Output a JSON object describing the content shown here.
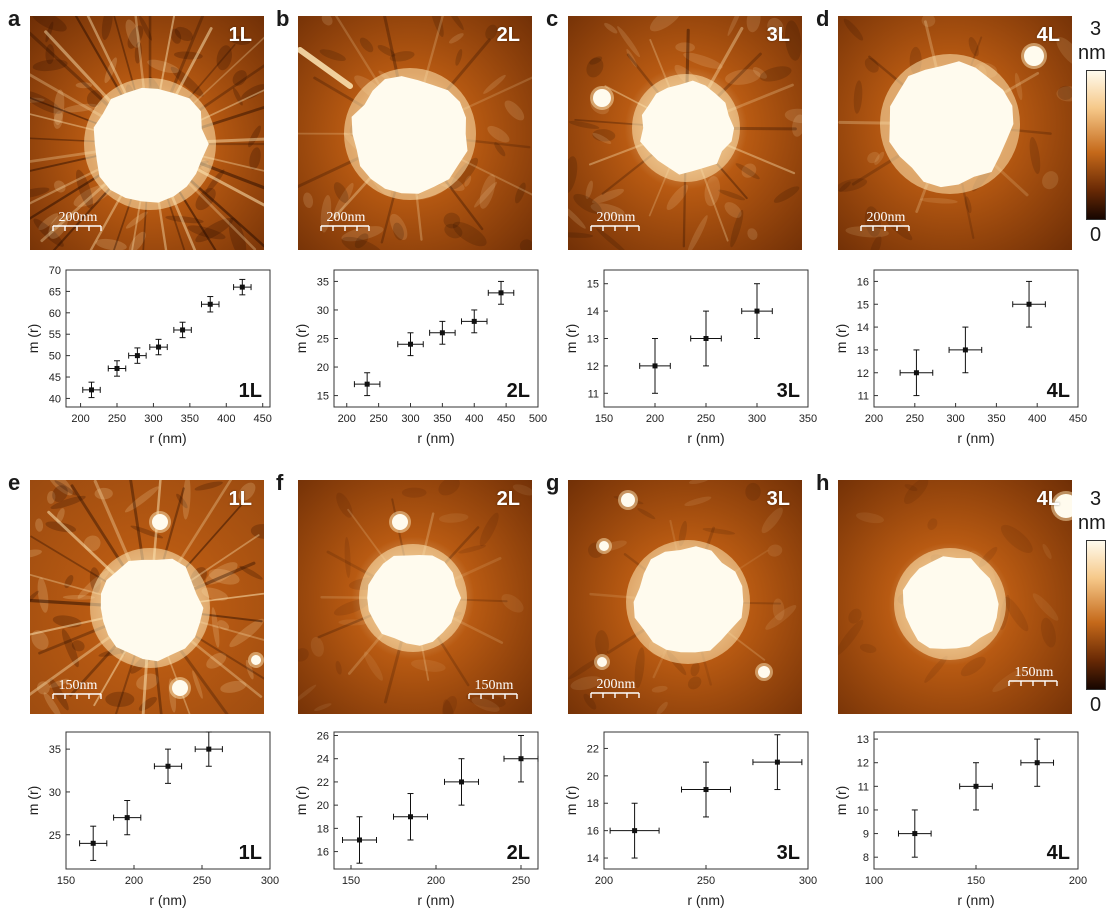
{
  "colorbar_top": {
    "max_label": "3",
    "unit": "nm",
    "min_label": "0"
  },
  "colorbar_bottom": {
    "max_label": "3",
    "unit": "nm",
    "min_label": "0"
  },
  "colors": {
    "afm_dark": "#2a0d00",
    "afm_mid": "#b85a12",
    "afm_light": "#ffe7b5",
    "afm_white": "#fffbee",
    "marker": "#111111"
  },
  "panels": [
    {
      "letter": "a",
      "layer": "1L",
      "scale": "200nm",
      "plot": {
        "xticks": [
          "200",
          "250",
          "300",
          "350",
          "400",
          "450"
        ],
        "yticks": [
          "40",
          "45",
          "50",
          "55",
          "60",
          "65",
          "70"
        ],
        "xlabel": "r (nm)",
        "ylabel": "m (r)"
      }
    },
    {
      "letter": "b",
      "layer": "2L",
      "scale": "200nm",
      "plot": {
        "xticks": [
          "200",
          "250",
          "300",
          "350",
          "400",
          "450",
          "500"
        ],
        "yticks": [
          "15",
          "20",
          "25",
          "30",
          "35"
        ],
        "xlabel": "r (nm)",
        "ylabel": "m (r)"
      }
    },
    {
      "letter": "c",
      "layer": "3L",
      "scale": "200nm",
      "plot": {
        "xticks": [
          "150",
          "200",
          "250",
          "300",
          "350"
        ],
        "yticks": [
          "11",
          "12",
          "13",
          "14",
          "15"
        ],
        "xlabel": "r (nm)",
        "ylabel": "m (r)"
      }
    },
    {
      "letter": "d",
      "layer": "4L",
      "scale": "200nm",
      "plot": {
        "xticks": [
          "200",
          "250",
          "300",
          "350",
          "400",
          "450"
        ],
        "yticks": [
          "11",
          "12",
          "13",
          "14",
          "15",
          "16"
        ],
        "xlabel": "r (nm)",
        "ylabel": "m (r)"
      }
    },
    {
      "letter": "e",
      "layer": "1L",
      "scale": "150nm",
      "plot": {
        "xticks": [
          "150",
          "200",
          "250",
          "300"
        ],
        "yticks": [
          "25",
          "30",
          "35"
        ],
        "xlabel": "r (nm)",
        "ylabel": "m (r)"
      }
    },
    {
      "letter": "f",
      "layer": "2L",
      "scale": "150nm",
      "plot": {
        "xticks": [
          "150",
          "200",
          "250"
        ],
        "yticks": [
          "16",
          "18",
          "20",
          "22",
          "24",
          "26"
        ],
        "xlabel": "r (nm)",
        "ylabel": "m (r)"
      }
    },
    {
      "letter": "g",
      "layer": "3L",
      "scale": "200nm",
      "plot": {
        "xticks": [
          "200",
          "250",
          "300"
        ],
        "yticks": [
          "14",
          "16",
          "18",
          "20",
          "22"
        ],
        "xlabel": "r (nm)",
        "ylabel": "m (r)"
      }
    },
    {
      "letter": "h",
      "layer": "4L",
      "scale": "150nm",
      "plot": {
        "xticks": [
          "100",
          "150",
          "200"
        ],
        "yticks": [
          "8",
          "9",
          "10",
          "11",
          "12",
          "13"
        ],
        "xlabel": "r (nm)",
        "ylabel": "m (r)"
      }
    }
  ],
  "chart_data": [
    {
      "type": "scatter",
      "panel": "a",
      "xlim": [
        180,
        460
      ],
      "ylim": [
        38,
        70
      ],
      "x": [
        215,
        250,
        278,
        307,
        340,
        378,
        422
      ],
      "y": [
        42,
        47,
        50,
        52,
        56,
        62,
        66
      ],
      "xerr": [
        12,
        12,
        12,
        12,
        12,
        12,
        12
      ],
      "yerr": [
        1.8,
        1.8,
        1.8,
        1.8,
        1.8,
        1.8,
        1.8
      ],
      "xlabel": "r (nm)",
      "ylabel": "m (r)"
    },
    {
      "type": "scatter",
      "panel": "b",
      "xlim": [
        180,
        500
      ],
      "ylim": [
        13,
        37
      ],
      "x": [
        232,
        300,
        350,
        400,
        442
      ],
      "y": [
        17,
        24,
        26,
        28,
        33
      ],
      "xerr": [
        20,
        20,
        20,
        20,
        20
      ],
      "yerr": [
        2,
        2,
        2,
        2,
        2
      ],
      "xlabel": "r (nm)",
      "ylabel": "m (r)"
    },
    {
      "type": "scatter",
      "panel": "c",
      "xlim": [
        150,
        350
      ],
      "ylim": [
        10.5,
        15.5
      ],
      "x": [
        200,
        250,
        300
      ],
      "y": [
        12,
        13,
        14
      ],
      "xerr": [
        15,
        15,
        15
      ],
      "yerr": [
        1,
        1,
        1
      ],
      "xlabel": "r (nm)",
      "ylabel": "m (r)"
    },
    {
      "type": "scatter",
      "panel": "d",
      "xlim": [
        200,
        450
      ],
      "ylim": [
        10.5,
        16.5
      ],
      "x": [
        252,
        312,
        390
      ],
      "y": [
        12,
        13,
        15
      ],
      "xerr": [
        20,
        20,
        20
      ],
      "yerr": [
        1,
        1,
        1
      ],
      "xlabel": "r (nm)",
      "ylabel": "m (r)"
    },
    {
      "type": "scatter",
      "panel": "e",
      "xlim": [
        150,
        300
      ],
      "ylim": [
        21,
        37
      ],
      "x": [
        170,
        195,
        225,
        255
      ],
      "y": [
        24,
        27,
        33,
        35
      ],
      "xerr": [
        10,
        10,
        10,
        10
      ],
      "yerr": [
        2,
        2,
        2,
        2
      ],
      "xlabel": "r (nm)",
      "ylabel": "m (r)"
    },
    {
      "type": "scatter",
      "panel": "f",
      "xlim": [
        140,
        260
      ],
      "ylim": [
        14.5,
        26.3
      ],
      "x": [
        155,
        185,
        215,
        250
      ],
      "y": [
        17,
        19,
        22,
        24
      ],
      "xerr": [
        10,
        10,
        10,
        10
      ],
      "yerr": [
        2,
        2,
        2,
        2
      ],
      "xlabel": "r (nm)",
      "ylabel": "m (r)"
    },
    {
      "type": "scatter",
      "panel": "g",
      "xlim": [
        200,
        300
      ],
      "ylim": [
        13.2,
        23.2
      ],
      "x": [
        215,
        250,
        285
      ],
      "y": [
        16,
        19,
        21
      ],
      "xerr": [
        12,
        12,
        12
      ],
      "yerr": [
        2,
        2,
        2
      ],
      "xlabel": "r (nm)",
      "ylabel": "m (r)"
    },
    {
      "type": "scatter",
      "panel": "h",
      "xlim": [
        100,
        200
      ],
      "ylim": [
        7.5,
        13.3
      ],
      "x": [
        120,
        150,
        180
      ],
      "y": [
        9,
        11,
        12
      ],
      "xerr": [
        8,
        8,
        8
      ],
      "yerr": [
        1,
        1,
        1
      ],
      "xlabel": "r (nm)",
      "ylabel": "m (r)"
    }
  ]
}
